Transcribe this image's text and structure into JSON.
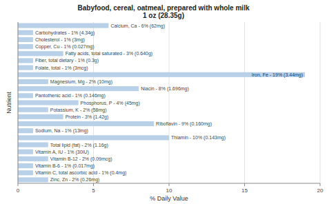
{
  "chart_data": {
    "type": "bar",
    "orientation": "horizontal",
    "title": "Babyfood, cereal, oatmeal, prepared with whole milk\n1 oz (28.35g)",
    "xlabel": "% Daily Value",
    "ylabel": "Nutrient",
    "categories": [
      "Calcium, Ca - 6% (62mg)",
      "Carbohydrates - 1% (4.34g)",
      "Cholesterol - 1% (3mg)",
      "Copper, Cu - 1% (0.027mg)",
      "Fatty acids, total saturated - 3% (0.640g)",
      "Fiber, total dietary - 1% (0.3g)",
      "Folate, total - 1% (3mcg)",
      "Iron, Fe - 19% (3.44mg)",
      "Magnesium, Mg - 2% (10mg)",
      "Niacin - 8% (1.696mg)",
      "Pantothenic acid - 1% (0.146mg)",
      "Phosphorus, P - 4% (45mg)",
      "Potassium, K - 2% (58mg)",
      "Protein - 3% (1.42g)",
      "Riboflavin - 9% (0.160mg)",
      "Sodium, Na - 1% (13mg)",
      "Thiamin - 10% (0.143mg)",
      "Total lipid (fat) - 2% (1.16g)",
      "Vitamin A, IU - 1% (30IU)",
      "Vitamin B-12 - 2% (0.09mcg)",
      "Vitamin B-6 - 1% (0.017mg)",
      "Vitamin C, total ascorbic acid - 1% (0.4mg)",
      "Zinc, Zn - 2% (0.26mg)"
    ],
    "values": [
      6,
      1,
      1,
      1,
      3,
      1,
      1,
      19,
      2,
      8,
      1,
      4,
      2,
      3,
      9,
      1,
      10,
      2,
      1,
      2,
      1,
      1,
      2
    ],
    "color": "#b8d0e8",
    "xlim": [
      0,
      20
    ],
    "xticks": [
      0,
      5,
      10,
      15,
      20
    ],
    "grid": true
  }
}
